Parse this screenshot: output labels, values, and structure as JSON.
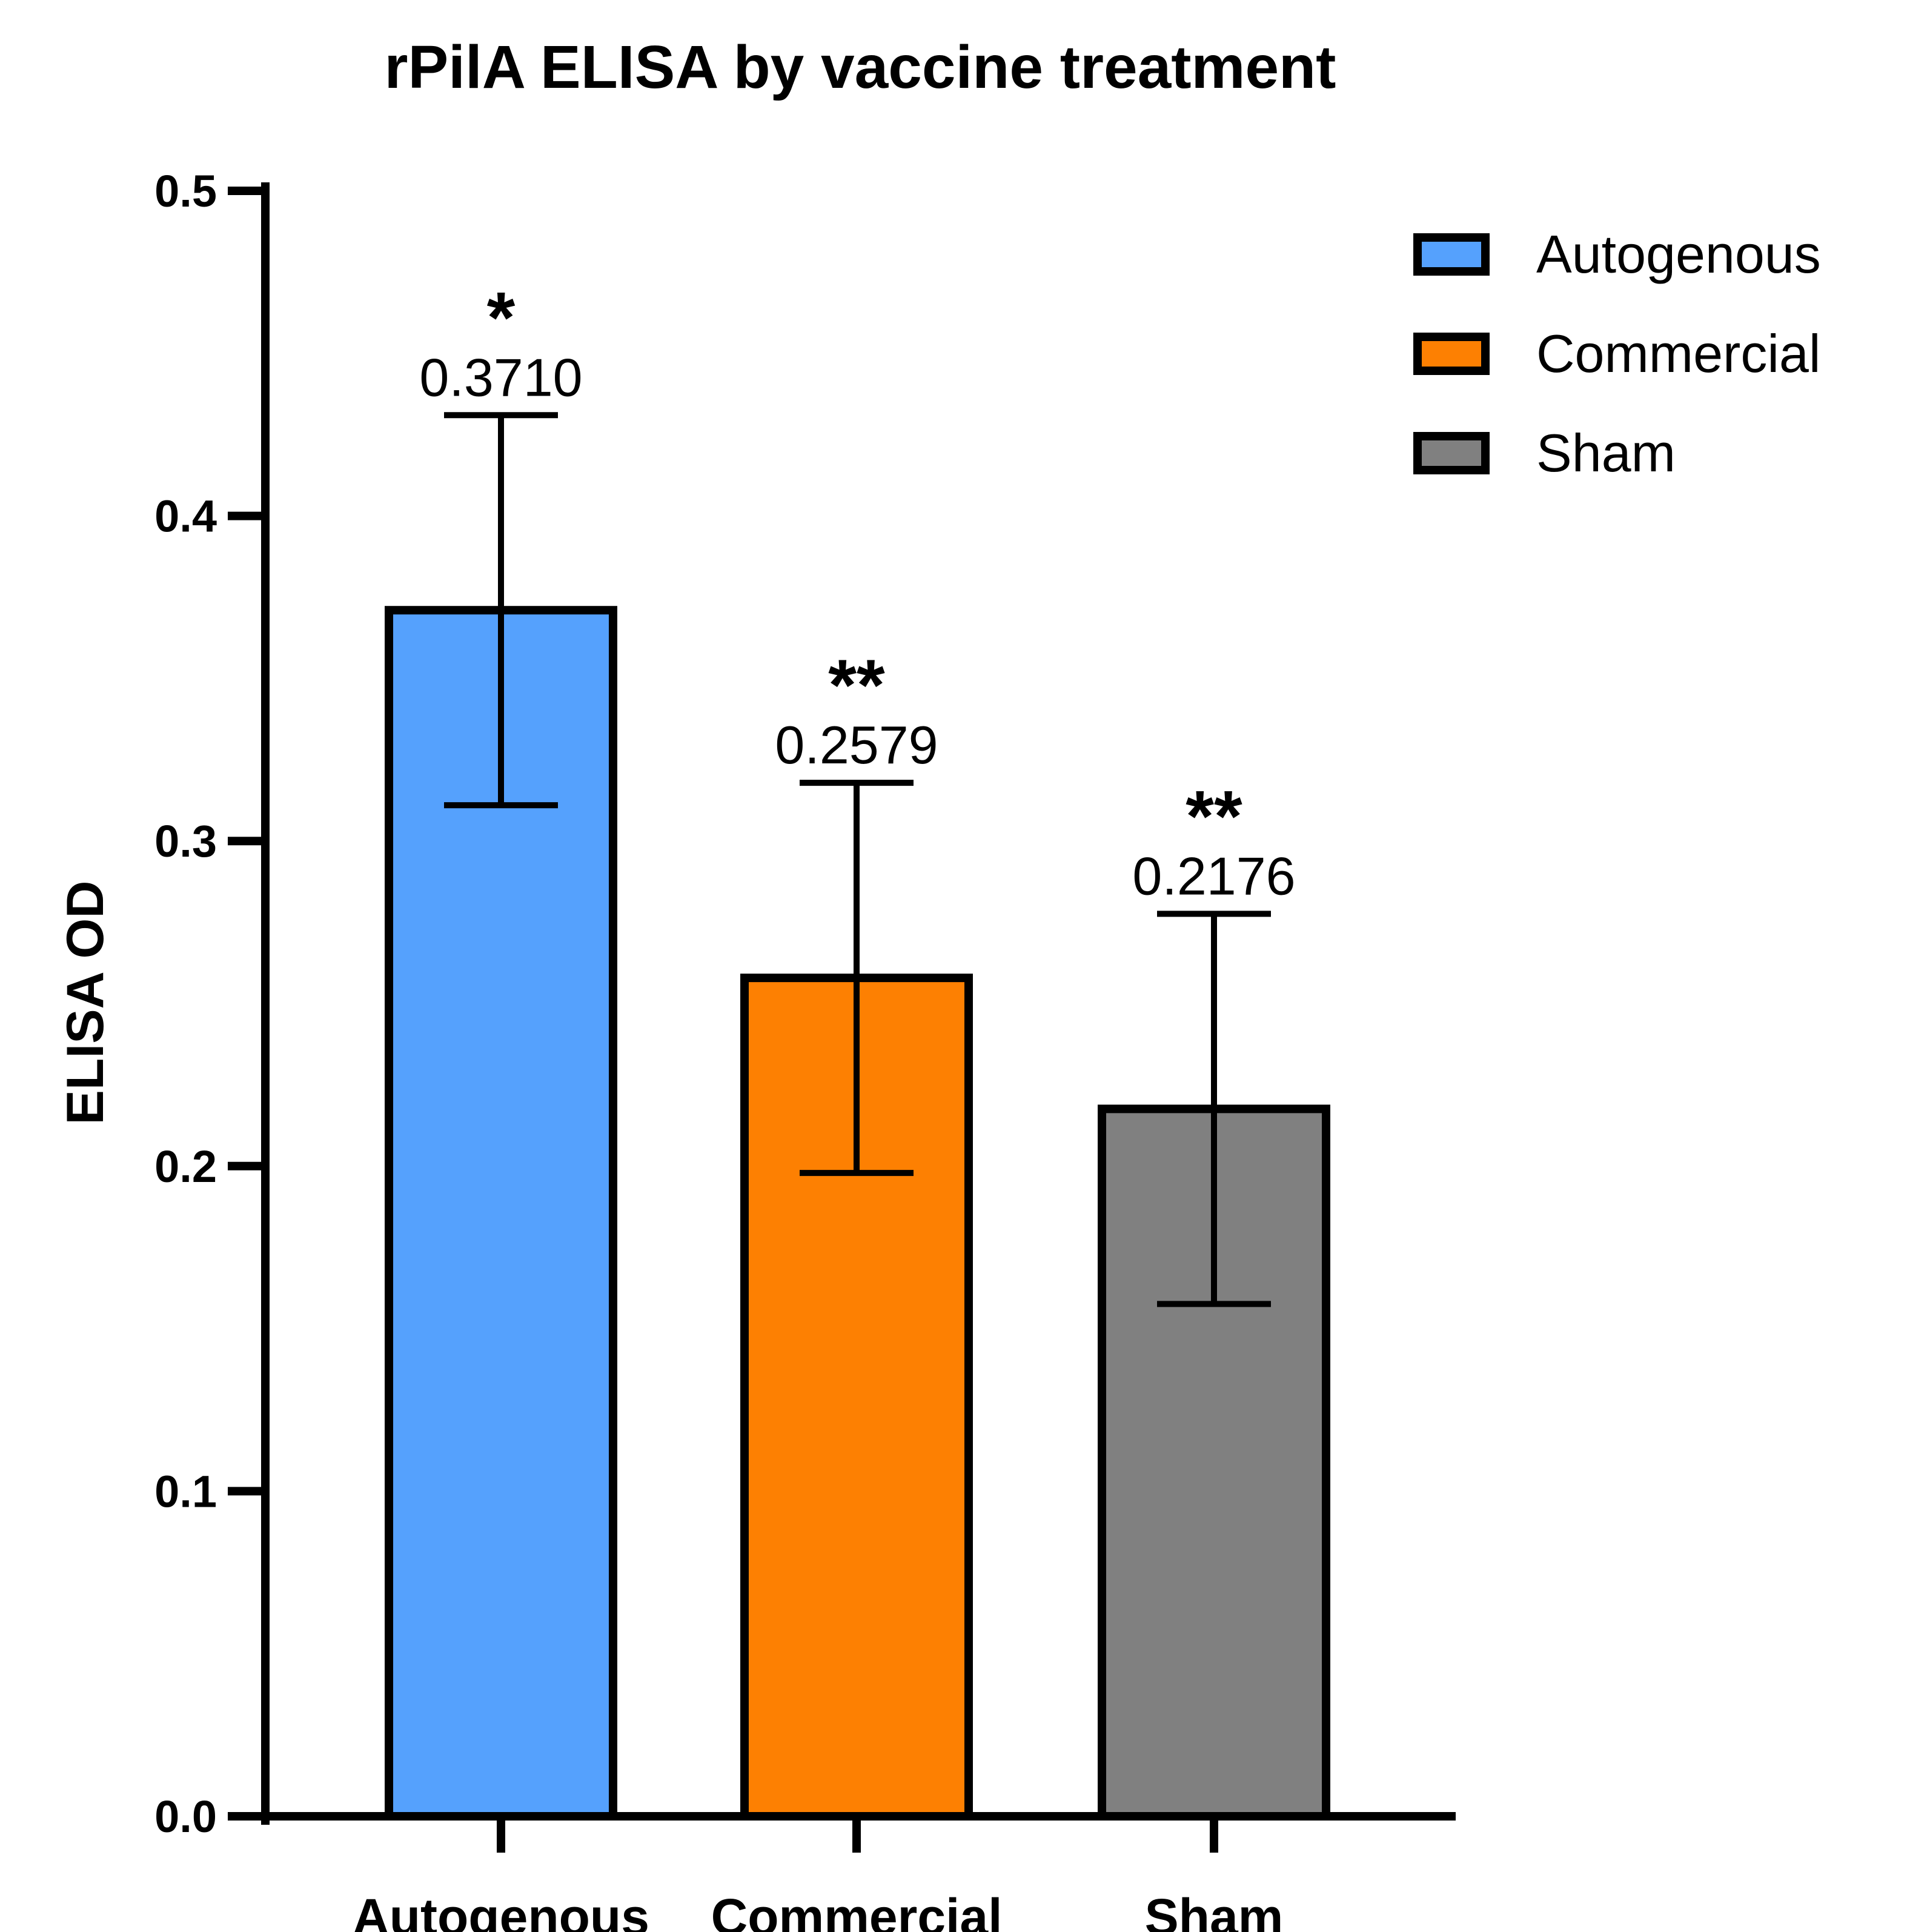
{
  "chart_data": {
    "type": "bar",
    "title": "rPilA ELISA by vaccine treatment",
    "xlabel": "",
    "ylabel": "ELISA OD",
    "ylim": [
      0.0,
      0.5
    ],
    "yticks": [
      "0.0",
      "0.1",
      "0.2",
      "0.3",
      "0.4",
      "0.5"
    ],
    "categories": [
      "Autogenous",
      "Commercial",
      "Sham"
    ],
    "values": [
      0.371,
      0.2579,
      0.2176
    ],
    "error": [
      0.06,
      0.06,
      0.06
    ],
    "value_labels": [
      "0.3710",
      "0.2579",
      "0.2176"
    ],
    "significance": [
      "*",
      "**",
      "**"
    ],
    "colors": [
      "#55a1fd",
      "#fd8002",
      "#808080"
    ],
    "legend": {
      "placement": "top-right",
      "entries": [
        "Autogenous",
        "Commercial",
        "Sham"
      ]
    }
  }
}
